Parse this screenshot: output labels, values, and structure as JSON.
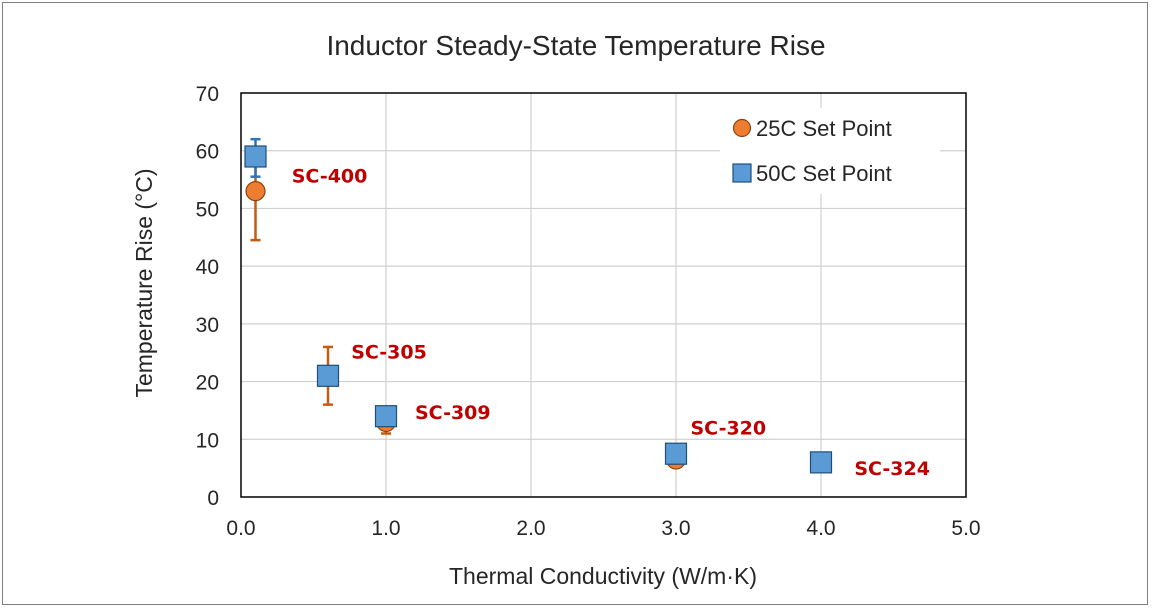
{
  "chart_data": {
    "type": "scatter",
    "title": "Inductor Steady-State Temperature Rise",
    "xlabel": "Thermal Conductivity (W/m·K)",
    "ylabel": "Temperature Rise (°C)",
    "xlim": [
      0,
      5
    ],
    "ylim": [
      0,
      70
    ],
    "x_ticks": [
      "0.0",
      "1.0",
      "2.0",
      "3.0",
      "4.0",
      "5.0"
    ],
    "y_ticks": [
      "0",
      "10",
      "20",
      "30",
      "40",
      "50",
      "60",
      "70"
    ],
    "grid": true,
    "legend_position": "top-right",
    "series": [
      {
        "name": "25C Set Point",
        "marker": "circle",
        "color": "#ed7d31",
        "error_color": "#c55a11",
        "points": [
          {
            "x": 0.1,
            "y": 53,
            "err_low": 44.5,
            "err_high": 58
          },
          {
            "x": 0.6,
            "y": 21,
            "err_low": 16,
            "err_high": 26
          },
          {
            "x": 1.0,
            "y": 13,
            "err_low": 11,
            "err_high": 15
          },
          {
            "x": 3.0,
            "y": 6.5,
            "err_low": 6,
            "err_high": 7
          },
          {
            "x": 4.0,
            "y": 6,
            "err_low": 5,
            "err_high": 7.5
          }
        ]
      },
      {
        "name": "50C Set Point",
        "marker": "square",
        "color": "#5b9bd5",
        "error_color": "#2e75b6",
        "points": [
          {
            "x": 0.1,
            "y": 59,
            "err_low": 55.5,
            "err_high": 62
          },
          {
            "x": 0.6,
            "y": 21,
            "err_low": 20.5,
            "err_high": 21.5
          },
          {
            "x": 1.0,
            "y": 14,
            "err_low": 13.5,
            "err_high": 14.5
          },
          {
            "x": 3.0,
            "y": 7.5,
            "err_low": 7,
            "err_high": 8
          },
          {
            "x": 4.0,
            "y": 6,
            "err_low": 5.5,
            "err_high": 6.5
          }
        ]
      }
    ],
    "annotations": [
      {
        "text": "SC-400",
        "x": 0.35,
        "y": 54.5
      },
      {
        "text": "SC-305",
        "x": 0.76,
        "y": 24
      },
      {
        "text": "SC-309",
        "x": 1.2,
        "y": 13.5
      },
      {
        "text": "SC-320",
        "x": 3.1,
        "y": 10.8
      },
      {
        "text": "SC-324",
        "x": 4.23,
        "y": 3.8
      }
    ]
  }
}
